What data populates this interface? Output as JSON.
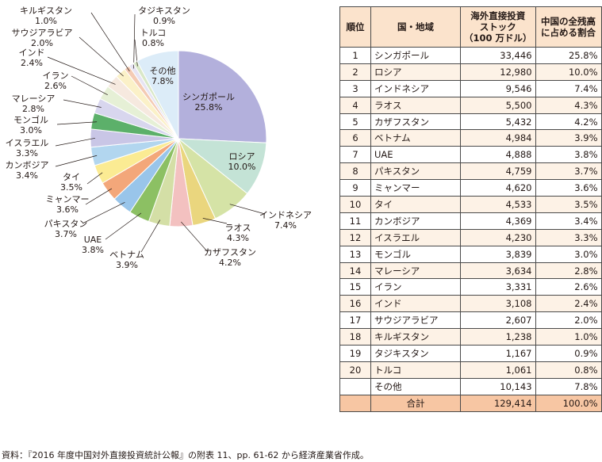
{
  "chart_data": {
    "type": "pie",
    "slices": [
      {
        "label": "シンガポール",
        "value": 25.8,
        "pct": "25.8%",
        "color": "#b3b0dc"
      },
      {
        "label": "ロシア",
        "value": 10.0,
        "pct": "10.0%",
        "color": "#c4e3d6"
      },
      {
        "label": "インドネシア",
        "value": 7.4,
        "pct": "7.4%",
        "color": "#d5e3a6"
      },
      {
        "label": "ラオス",
        "value": 4.3,
        "pct": "4.3%",
        "color": "#ead67e"
      },
      {
        "label": "カザフスタン",
        "value": 4.2,
        "pct": "4.2%",
        "color": "#f3c1c0"
      },
      {
        "label": "ベトナム",
        "value": 3.9,
        "pct": "3.9%",
        "color": "#d4dfa6"
      },
      {
        "label": "UAE",
        "value": 3.8,
        "pct": "3.8%",
        "color": "#8cc063"
      },
      {
        "label": "パキスタン",
        "value": 3.7,
        "pct": "3.7%",
        "color": "#99c5ea"
      },
      {
        "label": "ミャンマー",
        "value": 3.6,
        "pct": "3.6%",
        "color": "#f3a77a"
      },
      {
        "label": "タイ",
        "value": 3.5,
        "pct": "3.5%",
        "color": "#fbeb93"
      },
      {
        "label": "カンボジア",
        "value": 3.4,
        "pct": "3.4%",
        "color": "#b2d6ef"
      },
      {
        "label": "イスラエル",
        "value": 3.3,
        "pct": "3.3%",
        "color": "#c9c6e6"
      },
      {
        "label": "モンゴル",
        "value": 3.0,
        "pct": "3.0%",
        "color": "#5cb06a"
      },
      {
        "label": "マレーシア",
        "value": 2.8,
        "pct": "2.8%",
        "color": "#d8d6ee"
      },
      {
        "label": "イラン",
        "value": 2.6,
        "pct": "2.6%",
        "color": "#e6f0d6"
      },
      {
        "label": "インド",
        "value": 2.4,
        "pct": "2.4%",
        "color": "#f6e9df"
      },
      {
        "label": "サウジアラビア",
        "value": 2.0,
        "pct": "2.0%",
        "color": "#fbf1c8"
      },
      {
        "label": "キルギスタン",
        "value": 1.0,
        "pct": "1.0%",
        "color": "#f4cbb4"
      },
      {
        "label": "タジキスタン",
        "value": 0.9,
        "pct": "0.9%",
        "color": "#e7e4f3"
      },
      {
        "label": "トルコ",
        "value": 0.8,
        "pct": "0.8%",
        "color": "#d9e8c8"
      },
      {
        "label": "その他",
        "value": 7.8,
        "pct": "7.8%",
        "color": "#dcecf8"
      }
    ]
  },
  "table": {
    "headers": {
      "rank": "順位",
      "country": "国・地域",
      "stock": [
        "海外直接投資",
        "ストック",
        "（100 万ドル）"
      ],
      "share": [
        "中国の全残高",
        "に占める割合"
      ]
    },
    "rows": [
      {
        "rank": "1",
        "country": "シンガポール",
        "stock": "33,446",
        "share": "25.8%"
      },
      {
        "rank": "2",
        "country": "ロシア",
        "stock": "12,980",
        "share": "10.0%"
      },
      {
        "rank": "3",
        "country": "インドネシア",
        "stock": "9,546",
        "share": "7.4%"
      },
      {
        "rank": "4",
        "country": "ラオス",
        "stock": "5,500",
        "share": "4.3%"
      },
      {
        "rank": "5",
        "country": "カザフスタン",
        "stock": "5,432",
        "share": "4.2%"
      },
      {
        "rank": "6",
        "country": "ベトナム",
        "stock": "4,984",
        "share": "3.9%"
      },
      {
        "rank": "7",
        "country": "UAE",
        "stock": "4,888",
        "share": "3.8%"
      },
      {
        "rank": "8",
        "country": "パキスタン",
        "stock": "4,759",
        "share": "3.7%"
      },
      {
        "rank": "9",
        "country": "ミャンマー",
        "stock": "4,620",
        "share": "3.6%"
      },
      {
        "rank": "10",
        "country": "タイ",
        "stock": "4,533",
        "share": "3.5%"
      },
      {
        "rank": "11",
        "country": "カンボジア",
        "stock": "4,369",
        "share": "3.4%"
      },
      {
        "rank": "12",
        "country": "イスラエル",
        "stock": "4,230",
        "share": "3.3%"
      },
      {
        "rank": "13",
        "country": "モンゴル",
        "stock": "3,839",
        "share": "3.0%"
      },
      {
        "rank": "14",
        "country": "マレーシア",
        "stock": "3,634",
        "share": "2.8%"
      },
      {
        "rank": "15",
        "country": "イラン",
        "stock": "3,331",
        "share": "2.6%"
      },
      {
        "rank": "16",
        "country": "インド",
        "stock": "3,108",
        "share": "2.4%"
      },
      {
        "rank": "17",
        "country": "サウジアラビア",
        "stock": "2,607",
        "share": "2.0%"
      },
      {
        "rank": "18",
        "country": "キルギスタン",
        "stock": "1,238",
        "share": "1.0%"
      },
      {
        "rank": "19",
        "country": "タジキスタン",
        "stock": "1,167",
        "share": "0.9%"
      },
      {
        "rank": "20",
        "country": "トルコ",
        "stock": "1,061",
        "share": "0.8%"
      },
      {
        "rank": "",
        "country": "その他",
        "stock": "10,143",
        "share": "7.8%"
      }
    ],
    "total": {
      "label": "合計",
      "stock": "129,414",
      "share": "100.0%"
    }
  },
  "source_note": "資料：『2016 年度中国対外直接投資統計公報』の附表 11、pp. 61-62 から経済産業省作成。"
}
